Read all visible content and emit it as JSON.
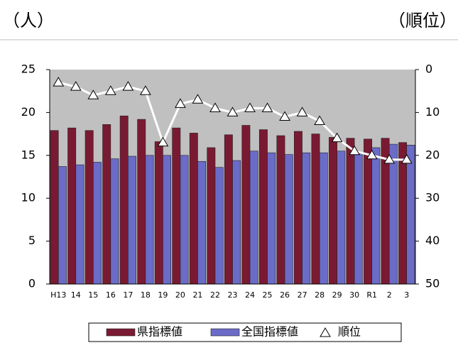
{
  "chart_data": {
    "type": "bar_line",
    "y_label": "（人）",
    "y2_label": "（順位）",
    "categories": [
      "H13",
      "14",
      "15",
      "16",
      "17",
      "18",
      "19",
      "20",
      "21",
      "22",
      "23",
      "24",
      "25",
      "26",
      "27",
      "28",
      "29",
      "30",
      "R1",
      "2",
      "3"
    ],
    "series": [
      {
        "name": "県指標値",
        "color": "#7a1a32",
        "type": "bar",
        "values": [
          17.9,
          18.2,
          17.9,
          18.6,
          19.6,
          19.2,
          16.6,
          18.2,
          17.6,
          15.9,
          17.4,
          18.5,
          18.0,
          17.3,
          17.8,
          17.5,
          17.1,
          17.0,
          16.9,
          17.0,
          16.5
        ]
      },
      {
        "name": "全国指標値",
        "color": "#6b6bc8",
        "type": "bar",
        "values": [
          13.7,
          13.9,
          14.2,
          14.6,
          14.9,
          15.0,
          15.0,
          15.0,
          14.3,
          13.6,
          14.4,
          15.5,
          15.3,
          15.1,
          15.3,
          15.3,
          15.5,
          15.2,
          15.9,
          16.3,
          16.2
        ]
      },
      {
        "name": "順位",
        "color": "#ffffff",
        "type": "line",
        "axis": "y2",
        "values": [
          3,
          4,
          6,
          5,
          4,
          5,
          17,
          8,
          7,
          9,
          10,
          9,
          9,
          11,
          10,
          12,
          16,
          19,
          20,
          21,
          21
        ]
      }
    ],
    "ylim": [
      0,
      25
    ],
    "yticks": [
      0,
      5,
      10,
      15,
      20,
      25
    ],
    "y2lim": [
      0,
      50
    ],
    "y2ticks": [
      0,
      10,
      20,
      30,
      40,
      50
    ],
    "y2_reversed": true,
    "plot_background": "#c0c0c0",
    "legend": "bottom"
  }
}
